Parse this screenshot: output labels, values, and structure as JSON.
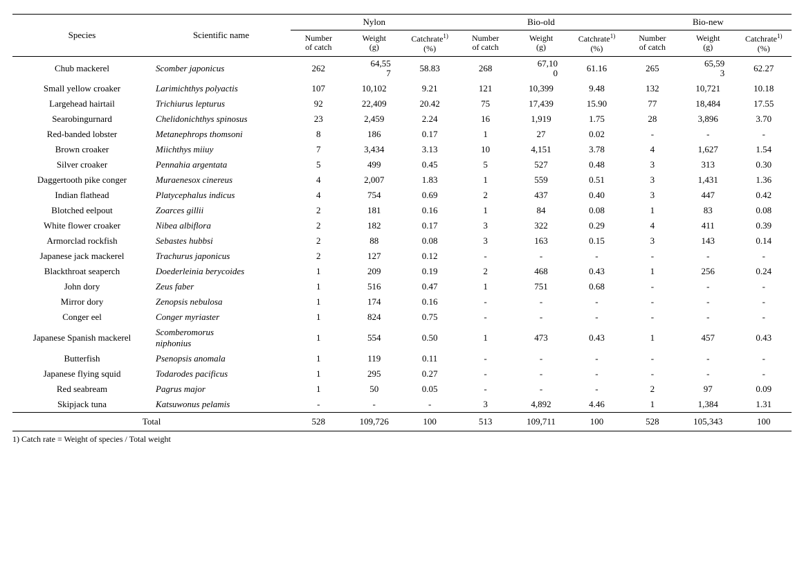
{
  "header": {
    "species": "Species",
    "sciname": "Scientific name",
    "groups": [
      "Nylon",
      "Bio-old",
      "Bio-new"
    ],
    "sub": {
      "num": "Number<br>of catch",
      "weight": "Weight<br>(g)",
      "rate": "Catchrate<sup>1)</sup><br>(%)"
    }
  },
  "rows": [
    {
      "sp": "Chub mackerel",
      "sci": "Scomber japonicus",
      "n": [
        "262",
        "64,55\n7",
        "58.83",
        "268",
        "67,10\n0",
        "61.16",
        "265",
        "65,59\n3",
        "62.27"
      ]
    },
    {
      "sp": "Small yellow croaker",
      "sci": "Larimichthys polyactis",
      "n": [
        "107",
        "10,102",
        "9.21",
        "121",
        "10,399",
        "9.48",
        "132",
        "10,721",
        "10.18"
      ]
    },
    {
      "sp": "Largehead hairtail",
      "sci": "Trichiurus lepturus",
      "n": [
        "92",
        "22,409",
        "20.42",
        "75",
        "17,439",
        "15.90",
        "77",
        "18,484",
        "17.55"
      ]
    },
    {
      "sp": "Searobingurnard",
      "sci": "Chelidonichthys spinosus",
      "n": [
        "23",
        "2,459",
        "2.24",
        "16",
        "1,919",
        "1.75",
        "28",
        "3,896",
        "3.70"
      ]
    },
    {
      "sp": "Red-banded lobster",
      "sci": "Metanephrops thomsoni",
      "n": [
        "8",
        "186",
        "0.17",
        "1",
        "27",
        "0.02",
        "-",
        "-",
        "-"
      ]
    },
    {
      "sp": "Brown croaker",
      "sci": "Miichthys miiuy",
      "n": [
        "7",
        "3,434",
        "3.13",
        "10",
        "4,151",
        "3.78",
        "4",
        "1,627",
        "1.54"
      ]
    },
    {
      "sp": "Silver croaker",
      "sci": "Pennahia argentata",
      "n": [
        "5",
        "499",
        "0.45",
        "5",
        "527",
        "0.48",
        "3",
        "313",
        "0.30"
      ]
    },
    {
      "sp": "Daggertooth pike conger",
      "sci": "Muraenesox cinereus",
      "n": [
        "4",
        "2,007",
        "1.83",
        "1",
        "559",
        "0.51",
        "3",
        "1,431",
        "1.36"
      ]
    },
    {
      "sp": "Indian flathead",
      "sci": "Platycephalus indicus",
      "n": [
        "4",
        "754",
        "0.69",
        "2",
        "437",
        "0.40",
        "3",
        "447",
        "0.42"
      ]
    },
    {
      "sp": "Blotched eelpout",
      "sci": "Zoarces gillii",
      "n": [
        "2",
        "181",
        "0.16",
        "1",
        "84",
        "0.08",
        "1",
        "83",
        "0.08"
      ]
    },
    {
      "sp": "White flower croaker",
      "sci": "Nibea albiflora",
      "n": [
        "2",
        "182",
        "0.17",
        "3",
        "322",
        "0.29",
        "4",
        "411",
        "0.39"
      ]
    },
    {
      "sp": "Armorclad rockfish",
      "sci": "Sebastes hubbsi",
      "n": [
        "2",
        "88",
        "0.08",
        "3",
        "163",
        "0.15",
        "3",
        "143",
        "0.14"
      ]
    },
    {
      "sp": "Japanese jack mackerel",
      "sci": "Trachurus japonicus",
      "n": [
        "2",
        "127",
        "0.12",
        "-",
        "-",
        "-",
        "-",
        "-",
        "-"
      ]
    },
    {
      "sp": "Blackthroat seaperch",
      "sci": "Doederleinia berycoides",
      "n": [
        "1",
        "209",
        "0.19",
        "2",
        "468",
        "0.43",
        "1",
        "256",
        "0.24"
      ]
    },
    {
      "sp": "John dory",
      "sci": "Zeus faber",
      "n": [
        "1",
        "516",
        "0.47",
        "1",
        "751",
        "0.68",
        "-",
        "-",
        "-"
      ]
    },
    {
      "sp": "Mirror dory",
      "sci": "Zenopsis nebulosa",
      "n": [
        "1",
        "174",
        "0.16",
        "-",
        "-",
        "-",
        "-",
        "-",
        "-"
      ]
    },
    {
      "sp": "Conger eel",
      "sci": "Conger myriaster",
      "n": [
        "1",
        "824",
        "0.75",
        "-",
        "-",
        "-",
        "-",
        "-",
        "-"
      ]
    },
    {
      "sp": "Japanese Spanish mackerel",
      "sci": "Scomberomorus niphonius",
      "n": [
        "1",
        "554",
        "0.50",
        "1",
        "473",
        "0.43",
        "1",
        "457",
        "0.43"
      ],
      "sciwrap": true
    },
    {
      "sp": "Butterfish",
      "sci": "Psenopsis anomala",
      "n": [
        "1",
        "119",
        "0.11",
        "-",
        "-",
        "-",
        "-",
        "-",
        "-"
      ]
    },
    {
      "sp": "Japanese flying squid",
      "sci": "Todarodes pacificus",
      "n": [
        "1",
        "295",
        "0.27",
        "-",
        "-",
        "-",
        "-",
        "-",
        "-"
      ]
    },
    {
      "sp": "Red seabream",
      "sci": "Pagrus major",
      "n": [
        "1",
        "50",
        "0.05",
        "-",
        "-",
        "-",
        "2",
        "97",
        "0.09"
      ]
    },
    {
      "sp": "Skipjack tuna",
      "sci": "Katsuwonus pelamis",
      "n": [
        "-",
        "-",
        "-",
        "3",
        "4,892",
        "4.46",
        "1",
        "1,384",
        "1.31"
      ]
    }
  ],
  "total": {
    "label": "Total",
    "n": [
      "528",
      "109,726",
      "100",
      "513",
      "109,711",
      "100",
      "528",
      "105,343",
      "100"
    ]
  },
  "footnote": "1) Catch rate = Weight of species / Total weight",
  "style": {
    "col_widths": [
      "200",
      "200",
      "80",
      "80",
      "80",
      "80",
      "80",
      "80",
      "80",
      "80",
      "80"
    ]
  }
}
